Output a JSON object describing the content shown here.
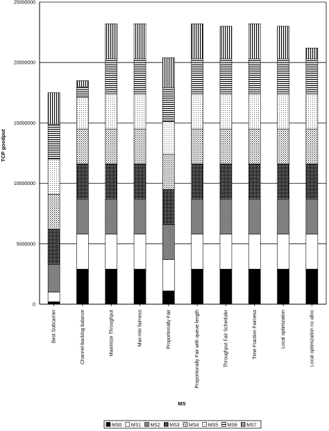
{
  "chart_data": {
    "type": "bar",
    "stacked": true,
    "xlabel": "MS",
    "ylabel": "TCP goodput",
    "ylim": [
      0,
      25000000
    ],
    "yticks": [
      "0",
      "5000000",
      "10000000",
      "15000000",
      "20000000",
      "25000000"
    ],
    "grid": true,
    "legend_position": "bottom",
    "categories": [
      "Best Subcarrier",
      "Channel-backlog balance",
      "Maximize Throughput",
      "Max-min fairness",
      "Proportionally Fair",
      "Proportionally Fair with queue length",
      "Throughput Fair Scheduler",
      "Time Fraction Fairness",
      "Local optimization",
      "Local optimization no alloc"
    ],
    "series": [
      {
        "name": "MS0",
        "pattern": "solid-black",
        "values": [
          200000,
          2900000,
          2900000,
          2900000,
          1100000,
          2900000,
          2900000,
          2900000,
          2900000,
          2900000
        ]
      },
      {
        "name": "MS1",
        "pattern": "white",
        "values": [
          800000,
          2900000,
          2900000,
          2900000,
          2600000,
          2900000,
          2900000,
          2900000,
          2900000,
          2900000
        ]
      },
      {
        "name": "MS2",
        "pattern": "dense-dots",
        "values": [
          2300000,
          2900000,
          2900000,
          2900000,
          2900000,
          2900000,
          2900000,
          2900000,
          2900000,
          2900000
        ]
      },
      {
        "name": "MS3",
        "pattern": "dark-dots",
        "values": [
          2900000,
          2900000,
          2900000,
          2900000,
          2900000,
          2900000,
          2900000,
          2900000,
          2900000,
          2900000
        ]
      },
      {
        "name": "MS4",
        "pattern": "medium-dots",
        "values": [
          2900000,
          2900000,
          2900000,
          2900000,
          2900000,
          2900000,
          2900000,
          2900000,
          2900000,
          2900000
        ]
      },
      {
        "name": "MS5",
        "pattern": "light-dots",
        "values": [
          2900000,
          2600000,
          2900000,
          2900000,
          2700000,
          2900000,
          2900000,
          2900000,
          2900000,
          2900000
        ]
      },
      {
        "name": "MS6",
        "pattern": "horizontal",
        "values": [
          2900000,
          900000,
          2900000,
          2900000,
          2800000,
          2900000,
          2900000,
          2900000,
          2900000,
          2900000
        ]
      },
      {
        "name": "MS7",
        "pattern": "vertical",
        "values": [
          2600000,
          500000,
          2900000,
          2900000,
          2500000,
          2900000,
          2700000,
          2900000,
          2700000,
          900000
        ]
      }
    ]
  }
}
